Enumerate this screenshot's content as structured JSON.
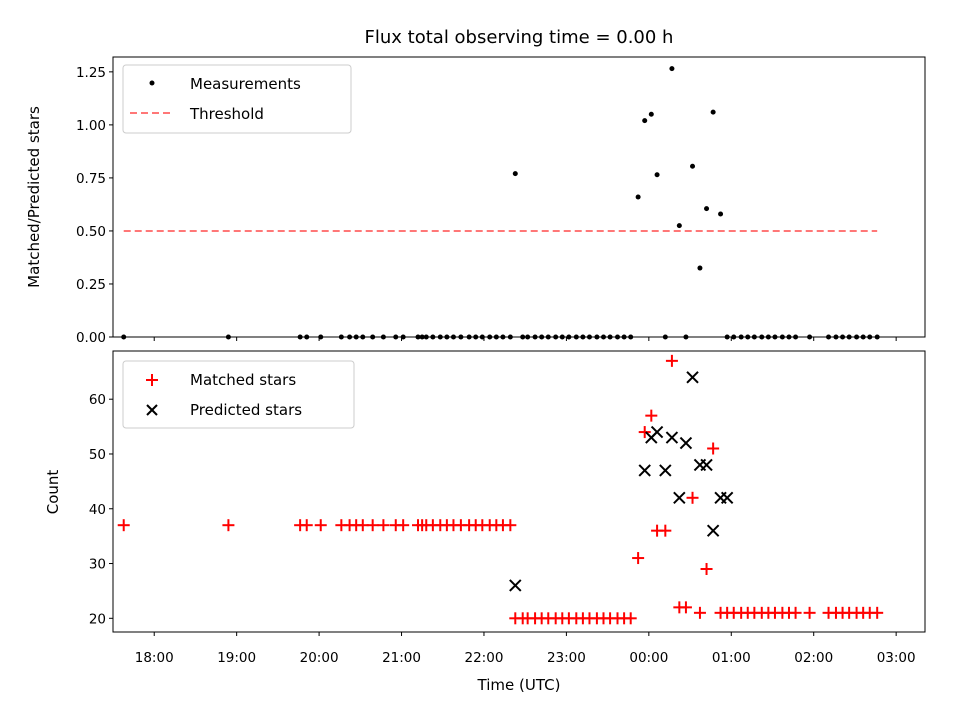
{
  "chart_data": [
    {
      "type": "scatter",
      "title": "Flux total observing time = 0.00 h",
      "xlabel": "",
      "ylabel": "Matched/Predicted stars",
      "xlim": [
        -6.5,
        3.35
      ],
      "ylim": [
        0.0,
        1.32
      ],
      "yticks": [
        0.0,
        0.25,
        0.5,
        0.75,
        1.0,
        1.25
      ],
      "ytick_labels": [
        "0.00",
        "0.25",
        "0.50",
        "0.75",
        "1.00",
        "1.25"
      ],
      "legend": {
        "position": "top-left",
        "entries": [
          "Measurements",
          "Threshold"
        ]
      },
      "series": [
        {
          "name": "Measurements",
          "color": "#000000",
          "marker": "dot",
          "x": [
            -6.37,
            -5.1,
            -4.23,
            -4.15,
            -3.98,
            -3.73,
            -3.63,
            -3.55,
            -3.47,
            -3.35,
            -3.22,
            -3.07,
            -2.98,
            -2.8,
            -2.75,
            -2.7,
            -2.62,
            -2.53,
            -2.45,
            -2.37,
            -2.28,
            -2.18,
            -2.1,
            -2.02,
            -1.93,
            -1.85,
            -1.77,
            -1.68,
            -1.62,
            -1.53,
            -1.47,
            -1.38,
            -1.3,
            -1.22,
            -1.13,
            -1.05,
            -0.97,
            -0.88,
            -0.8,
            -0.72,
            -0.63,
            -0.55,
            -0.47,
            -0.38,
            -0.3,
            -0.22,
            -0.13,
            -0.05,
            0.03,
            0.1,
            0.2,
            0.28,
            0.37,
            0.45,
            0.53,
            0.62,
            0.7,
            0.78,
            0.87,
            0.95,
            1.03,
            1.12,
            1.2,
            1.28,
            1.37,
            1.45,
            1.53,
            1.62,
            1.7,
            1.78,
            1.95,
            2.18,
            2.27,
            2.35,
            2.43,
            2.52,
            2.6,
            2.68,
            2.77
          ],
          "y": [
            0,
            0,
            0,
            0,
            0,
            0,
            0,
            0,
            0,
            0,
            0,
            0,
            0,
            0,
            0,
            0,
            0,
            0,
            0,
            0,
            0,
            0,
            0,
            0,
            0,
            0,
            0,
            0,
            0.77,
            0,
            0,
            0,
            0,
            0,
            0,
            0,
            0,
            0,
            0,
            0,
            0,
            0,
            0,
            0,
            0,
            0,
            0.66,
            1.02,
            1.05,
            0.765,
            0,
            1.265,
            0.525,
            0,
            0.805,
            0.325,
            0.605,
            1.06,
            0.58,
            0,
            0,
            0,
            0,
            0,
            0,
            0,
            0,
            0,
            0,
            0,
            0,
            0,
            0,
            0,
            0,
            0,
            0,
            0,
            0
          ]
        },
        {
          "name": "Threshold",
          "color": "#ff7777",
          "style": "dashed",
          "x": [
            -6.37,
            2.77
          ],
          "y": [
            0.5,
            0.5
          ]
        }
      ]
    },
    {
      "type": "scatter",
      "title": "",
      "xlabel": "Time (UTC)",
      "ylabel": "Count",
      "xlim": [
        -6.5,
        3.35
      ],
      "ylim": [
        17.5,
        68.8
      ],
      "xticks": [
        -6,
        -5,
        -4,
        -3,
        -2,
        -1,
        0,
        1,
        2,
        3
      ],
      "xtick_labels": [
        "18:00",
        "19:00",
        "20:00",
        "21:00",
        "22:00",
        "23:00",
        "00:00",
        "01:00",
        "02:00",
        "03:00"
      ],
      "yticks": [
        20,
        30,
        40,
        50,
        60
      ],
      "ytick_labels": [
        "20",
        "30",
        "40",
        "50",
        "60"
      ],
      "legend": {
        "position": "top-left",
        "entries": [
          "Matched stars",
          "Predicted stars"
        ]
      },
      "series": [
        {
          "name": "Matched stars",
          "color": "#ff0000",
          "marker": "plus",
          "x": [
            -6.37,
            -5.1,
            -4.23,
            -4.15,
            -3.98,
            -3.73,
            -3.63,
            -3.55,
            -3.47,
            -3.35,
            -3.22,
            -3.07,
            -2.98,
            -2.8,
            -2.75,
            -2.7,
            -2.62,
            -2.53,
            -2.45,
            -2.37,
            -2.28,
            -2.18,
            -2.1,
            -2.02,
            -1.93,
            -1.85,
            -1.77,
            -1.68,
            -1.62,
            -1.53,
            -1.47,
            -1.38,
            -1.3,
            -1.22,
            -1.13,
            -1.05,
            -0.97,
            -0.88,
            -0.8,
            -0.72,
            -0.63,
            -0.55,
            -0.47,
            -0.38,
            -0.3,
            -0.22,
            -0.13,
            -0.05,
            0.03,
            0.1,
            0.2,
            0.28,
            0.37,
            0.45,
            0.53,
            0.62,
            0.7,
            0.78,
            0.87,
            0.95,
            1.03,
            1.12,
            1.2,
            1.28,
            1.37,
            1.45,
            1.53,
            1.62,
            1.7,
            1.78,
            1.95,
            2.18,
            2.27,
            2.35,
            2.43,
            2.52,
            2.6,
            2.68,
            2.77
          ],
          "y": [
            37,
            37,
            37,
            37,
            37,
            37,
            37,
            37,
            37,
            37,
            37,
            37,
            37,
            37,
            37,
            37,
            37,
            37,
            37,
            37,
            37,
            37,
            37,
            37,
            37,
            37,
            37,
            37,
            20,
            20,
            20,
            20,
            20,
            20,
            20,
            20,
            20,
            20,
            20,
            20,
            20,
            20,
            20,
            20,
            20,
            20,
            31,
            54,
            57,
            36,
            36,
            67,
            22,
            22,
            42,
            21,
            29,
            51,
            21,
            21,
            21,
            21,
            21,
            21,
            21,
            21,
            21,
            21,
            21,
            21,
            21,
            21,
            21,
            21,
            21,
            21,
            21,
            21,
            21
          ]
        },
        {
          "name": "Predicted stars",
          "color": "#000000",
          "marker": "x",
          "x": [
            -1.62,
            -0.05,
            0.03,
            0.1,
            0.2,
            0.28,
            0.37,
            0.45,
            0.53,
            0.62,
            0.7,
            0.78,
            0.87,
            0.95
          ],
          "y": [
            26,
            47,
            53,
            54,
            47,
            53,
            42,
            52,
            64,
            48,
            48,
            36,
            42,
            42
          ]
        }
      ]
    }
  ]
}
